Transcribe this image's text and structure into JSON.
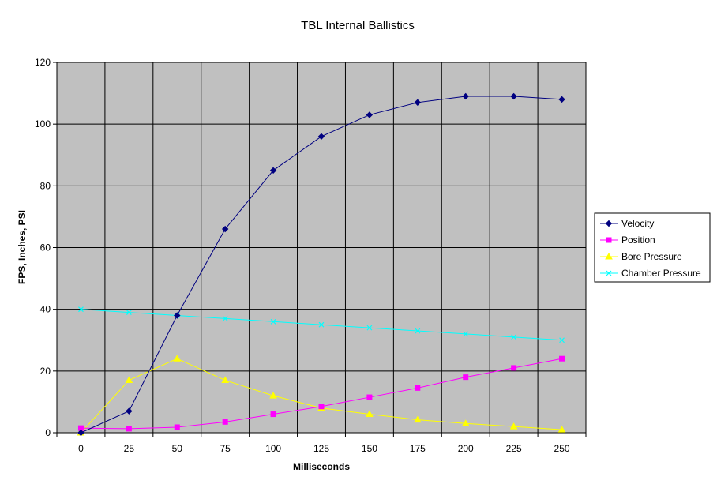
{
  "chart_data": {
    "type": "line",
    "title": "TBL Internal Ballistics",
    "xlabel": "Milliseconds",
    "ylabel": "FPS, Inches, PSI",
    "x": [
      0,
      25,
      50,
      75,
      100,
      125,
      150,
      175,
      200,
      225,
      250
    ],
    "xlim": [
      -12.5,
      262.5
    ],
    "ylim": [
      0,
      120
    ],
    "yticks": [
      0,
      20,
      40,
      60,
      80,
      100,
      120
    ],
    "grid": true,
    "legend_position": "right",
    "plot_background": "#c0c0c0",
    "series": [
      {
        "name": "Velocity",
        "color": "#000080",
        "marker": "diamond",
        "values": [
          0,
          7,
          38,
          66,
          85,
          96,
          103,
          107,
          109,
          109,
          108
        ]
      },
      {
        "name": "Position",
        "color": "#ff00ff",
        "marker": "square",
        "values": [
          1.5,
          1.3,
          1.8,
          3.5,
          6,
          8.5,
          11.5,
          14.5,
          18,
          21,
          24
        ]
      },
      {
        "name": "Bore Pressure",
        "color": "#ffff00",
        "marker": "triangle",
        "values": [
          0,
          17,
          24,
          17,
          12,
          8,
          6,
          4.2,
          3,
          2,
          1
        ]
      },
      {
        "name": "Chamber Pressure",
        "color": "#00ffff",
        "marker": "x",
        "values": [
          40,
          39,
          38,
          37,
          36,
          35,
          34,
          33,
          32,
          31,
          30
        ]
      }
    ]
  }
}
